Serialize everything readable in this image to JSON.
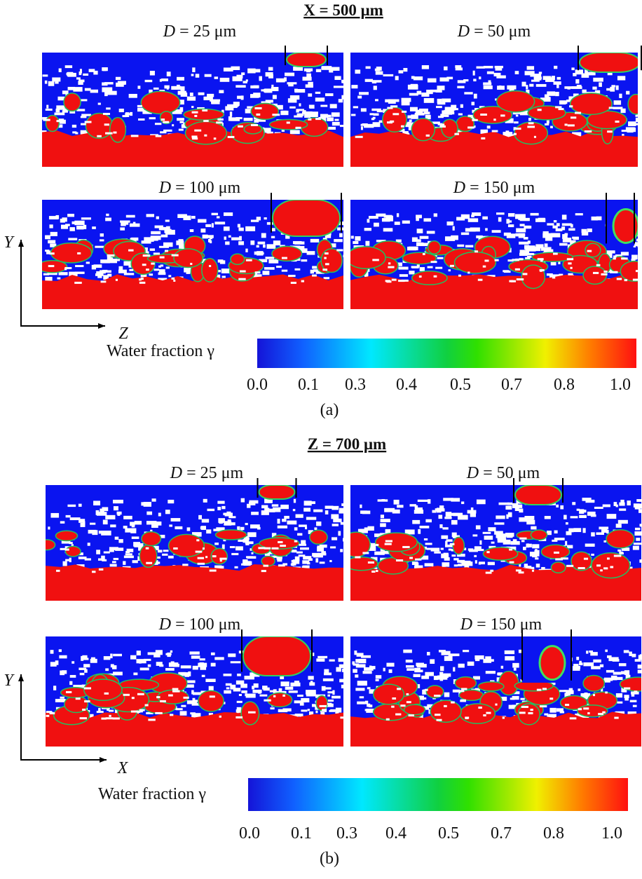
{
  "panels": [
    {
      "title": "X  = 500 μm",
      "frames": [
        {
          "variable": "D",
          "text": " = 25 μm"
        },
        {
          "variable": "D",
          "text": " = 50 μm"
        },
        {
          "variable": "D",
          "text": " = 100 μm"
        },
        {
          "variable": "D",
          "text": " = 150 μm"
        }
      ],
      "axes": {
        "vertical": "Y",
        "horizontal": "Z"
      },
      "colorbar": {
        "label": "Water fraction γ",
        "ticks": [
          "0.0",
          "0.1",
          "0.3",
          "0.4",
          "0.5",
          "0.7",
          "0.8",
          "1.0"
        ]
      },
      "caption": "(a)"
    },
    {
      "title": "Z = 700 μm",
      "frames": [
        {
          "variable": "D",
          "text": " = 25 μm"
        },
        {
          "variable": "D",
          "text": " = 50 μm"
        },
        {
          "variable": "D",
          "text": " = 100 μm"
        },
        {
          "variable": "D",
          "text": " = 150 μm"
        }
      ],
      "axes": {
        "vertical": "Y",
        "horizontal": "X"
      },
      "colorbar": {
        "label": "Water fraction γ",
        "ticks": [
          "0.0",
          "0.1",
          "0.3",
          "0.4",
          "0.5",
          "0.7",
          "0.8",
          "1.0"
        ]
      },
      "caption": "(b)"
    }
  ]
}
